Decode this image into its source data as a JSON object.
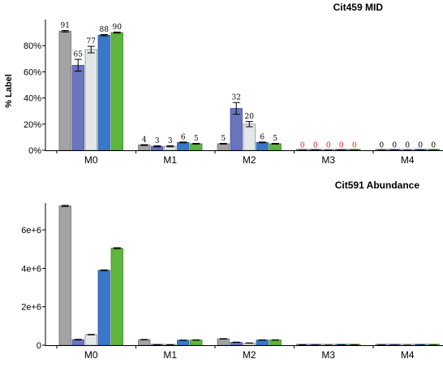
{
  "colors": {
    "bar_fills": [
      "#a3a3a5",
      "#6a74bf",
      "#e3e7e8",
      "#3b77c9",
      "#5eb43c"
    ],
    "bar_strokes": [
      "#6e6e70",
      "#4a529a",
      "#8b9192",
      "#285aa0",
      "#3e8a22"
    ],
    "zero_label": "#e02020",
    "label": "#000000"
  },
  "chart_data": [
    {
      "type": "bar",
      "title": "Cit459 MID",
      "ylabel": "% Label",
      "xlabel": "",
      "ylim": [
        0,
        100
      ],
      "yticks": [
        0,
        20,
        40,
        60,
        80
      ],
      "ytick_labels": [
        "0%",
        "20%",
        "40%",
        "60%",
        "80%"
      ],
      "categories": [
        "M0",
        "M1",
        "M2",
        "M3",
        "M4"
      ],
      "series": [
        {
          "values": [
            91,
            4,
            5,
            0,
            0
          ],
          "errors": [
            0.6,
            0.3,
            0.3,
            0.1,
            0.1
          ]
        },
        {
          "values": [
            65,
            3,
            32,
            0,
            0
          ],
          "errors": [
            4.5,
            0.4,
            4.5,
            0.1,
            0.1
          ]
        },
        {
          "values": [
            77,
            3,
            20,
            0,
            0
          ],
          "errors": [
            2.5,
            0.4,
            2.0,
            0.1,
            0.1
          ]
        },
        {
          "values": [
            88,
            6,
            6,
            0,
            0
          ],
          "errors": [
            0.5,
            0.3,
            0.3,
            0.1,
            0.1
          ]
        },
        {
          "values": [
            90,
            5,
            5,
            0,
            0
          ],
          "errors": [
            0.4,
            0.3,
            0.3,
            0.1,
            0.1
          ]
        }
      ],
      "data_labels": [
        [
          "91",
          "4",
          "5",
          "0",
          "0"
        ],
        [
          "65",
          "3",
          "32",
          "0",
          "0"
        ],
        [
          "77",
          "3",
          "20",
          "0",
          "0"
        ],
        [
          "88",
          "6",
          "6",
          "0",
          "0"
        ],
        [
          "90",
          "5",
          "5",
          "0",
          "0"
        ]
      ],
      "data_label_zero_red": [
        false,
        false,
        false,
        true,
        false
      ],
      "grid": false
    },
    {
      "type": "bar",
      "title": "Cit591 Abundance",
      "ylabel": "",
      "xlabel": "",
      "ylim": [
        0,
        7400000
      ],
      "yticks": [
        0,
        2000000,
        4000000,
        6000000
      ],
      "ytick_labels": [
        "0",
        "2e+6",
        "4e+6",
        "6e+6"
      ],
      "categories": [
        "M0",
        "M1",
        "M2",
        "M3",
        "M4"
      ],
      "series": [
        {
          "values": [
            7250000,
            290000,
            330000,
            20000,
            8000
          ],
          "errors": [
            30000,
            10000,
            12000,
            2000,
            1000
          ]
        },
        {
          "values": [
            290000,
            20000,
            150000,
            5000,
            2000
          ],
          "errors": [
            15000,
            3000,
            10000,
            1000,
            500
          ]
        },
        {
          "values": [
            550000,
            20000,
            110000,
            5000,
            2000
          ],
          "errors": [
            12000,
            3000,
            8000,
            1000,
            500
          ]
        },
        {
          "values": [
            3900000,
            260000,
            270000,
            15000,
            5000
          ],
          "errors": [
            20000,
            8000,
            8000,
            1500,
            800
          ]
        },
        {
          "values": [
            5050000,
            270000,
            270000,
            15000,
            5000
          ],
          "errors": [
            25000,
            8000,
            8000,
            1500,
            800
          ]
        }
      ],
      "grid": false
    }
  ]
}
